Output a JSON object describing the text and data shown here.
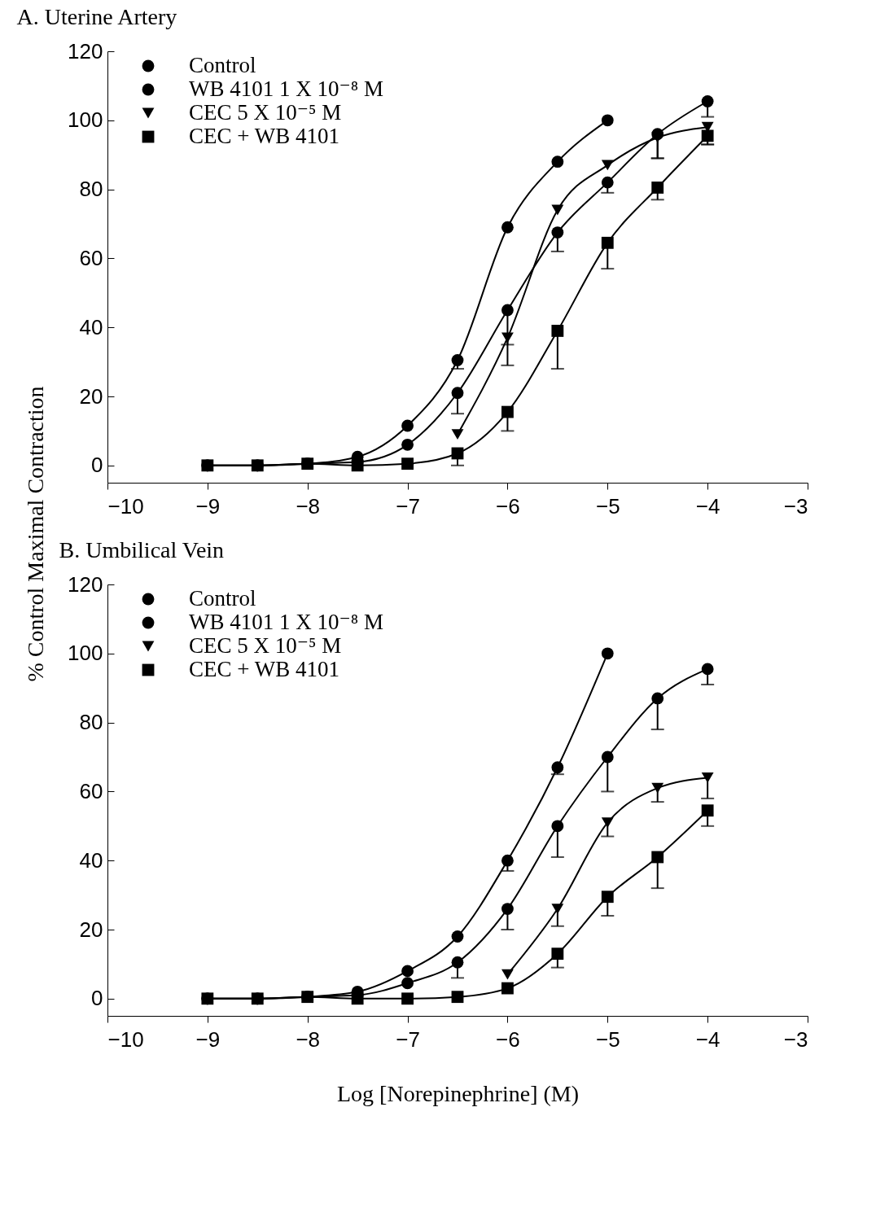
{
  "chart_data": [
    {
      "type": "line",
      "title": "A. Uterine Artery",
      "ylabel": "% Control Maximal Contraction",
      "xlim": [
        -10,
        -3
      ],
      "xticks": [
        -10,
        -9,
        -8,
        -7,
        -6,
        -5,
        -4,
        -3
      ],
      "ylim": [
        -5,
        120
      ],
      "yticks": [
        0,
        20,
        40,
        60,
        80,
        100,
        120
      ],
      "legend": "top left",
      "line_style": "solid",
      "series": [
        {
          "name": "Control",
          "color": "#000000",
          "marker": "circle",
          "x": [
            -9,
            -8.5,
            -8,
            -7.5,
            -7,
            -6.5,
            -6,
            -5.5,
            -5
          ],
          "values": [
            0,
            0,
            0.5,
            2.5,
            11.5,
            30.5,
            69,
            88,
            100
          ],
          "errors": [
            null,
            null,
            null,
            null,
            null,
            [
              28,
              30.5
            ],
            null,
            null,
            null
          ]
        },
        {
          "name": "WB 4101 1 X 10⁻⁸ M",
          "color": "#000000",
          "marker": "circle",
          "x": [
            -9,
            -8.5,
            -8,
            -7.5,
            -7,
            -6.5,
            -6,
            -5.5,
            -5,
            -4.5,
            -4
          ],
          "values": [
            0,
            0,
            0.5,
            1,
            6,
            21,
            45,
            67.5,
            82,
            96,
            105.5
          ],
          "errors": [
            null,
            null,
            null,
            null,
            null,
            [
              15,
              21
            ],
            [
              35,
              45
            ],
            [
              62,
              67.5
            ],
            [
              79,
              82
            ],
            [
              89,
              96
            ],
            [
              101,
              105.5
            ]
          ]
        },
        {
          "name": "CEC 5 X 10⁻⁵ M",
          "color": "#000000",
          "marker": "triangle",
          "x": [
            -6.5,
            -6,
            -5.5,
            -5,
            -4.5,
            -4
          ],
          "values": [
            9,
            37,
            74,
            87,
            95,
            98
          ],
          "errors": [
            null,
            [
              29,
              37
            ],
            null,
            null,
            [
              89,
              95
            ],
            [
              93,
              98
            ]
          ]
        },
        {
          "name": "CEC + WB 4101",
          "color": "#000000",
          "marker": "square",
          "x": [
            -9,
            -8.5,
            -8,
            -7.5,
            -7,
            -6.5,
            -6,
            -5.5,
            -5,
            -4.5,
            -4
          ],
          "values": [
            0,
            0,
            0.5,
            0,
            0.5,
            3.5,
            15.5,
            39,
            64.5,
            80.5,
            95.5
          ],
          "errors": [
            null,
            null,
            null,
            null,
            null,
            [
              0,
              3.5
            ],
            [
              10,
              15.5
            ],
            [
              28,
              39
            ],
            [
              57,
              64.5
            ],
            [
              77,
              80.5
            ],
            [
              93,
              95.5
            ]
          ]
        }
      ]
    },
    {
      "type": "line",
      "title": "B. Umbilical Vein",
      "xlabel": "Log [Norepinephrine] (M)",
      "xlim": [
        -10,
        -3
      ],
      "xticks": [
        -10,
        -9,
        -8,
        -7,
        -6,
        -5,
        -4,
        -3
      ],
      "ylim": [
        -5,
        120
      ],
      "yticks": [
        0,
        20,
        40,
        60,
        80,
        100,
        120
      ],
      "legend": "top left",
      "line_style": "solid",
      "series": [
        {
          "name": "Control",
          "color": "#000000",
          "marker": "circle",
          "x": [
            -9,
            -8.5,
            -8,
            -7.5,
            -7,
            -6.5,
            -6,
            -5.5,
            -5
          ],
          "values": [
            0,
            0,
            0.5,
            2,
            8,
            18,
            40,
            67,
            100
          ],
          "errors": [
            null,
            null,
            null,
            null,
            null,
            null,
            [
              37,
              40
            ],
            [
              65,
              67
            ],
            null
          ]
        },
        {
          "name": "WB 4101 1 X 10⁻⁸ M",
          "color": "#000000",
          "marker": "circle",
          "x": [
            -9,
            -8.5,
            -8,
            -7.5,
            -7,
            -6.5,
            -6,
            -5.5,
            -5,
            -4.5,
            -4
          ],
          "values": [
            0,
            0,
            0.5,
            1,
            4.5,
            10.5,
            26,
            50,
            70,
            87,
            95.5
          ],
          "errors": [
            null,
            null,
            null,
            null,
            null,
            [
              6,
              10.5
            ],
            [
              20,
              26
            ],
            [
              41,
              50
            ],
            [
              60,
              70
            ],
            [
              78,
              87
            ],
            [
              91,
              95.5
            ]
          ]
        },
        {
          "name": "CEC 5 X 10⁻⁵ M",
          "color": "#000000",
          "marker": "triangle",
          "x": [
            -6,
            -5.5,
            -5,
            -4.5,
            -4
          ],
          "values": [
            7,
            26,
            51,
            61,
            64
          ],
          "errors": [
            null,
            [
              21,
              26
            ],
            [
              47,
              51
            ],
            [
              57,
              61
            ],
            [
              58,
              64
            ]
          ]
        },
        {
          "name": "CEC + WB 4101",
          "color": "#000000",
          "marker": "square",
          "x": [
            -9,
            -8.5,
            -8,
            -7.5,
            -7,
            -6.5,
            -6,
            -5.5,
            -5,
            -4.5,
            -4
          ],
          "values": [
            0,
            0,
            0.5,
            0,
            0,
            0.5,
            3,
            13,
            29.5,
            41,
            54.5
          ],
          "errors": [
            null,
            null,
            null,
            null,
            null,
            null,
            null,
            [
              9,
              13
            ],
            [
              24,
              29.5
            ],
            [
              32,
              41
            ],
            [
              50,
              54.5
            ]
          ]
        }
      ]
    }
  ]
}
